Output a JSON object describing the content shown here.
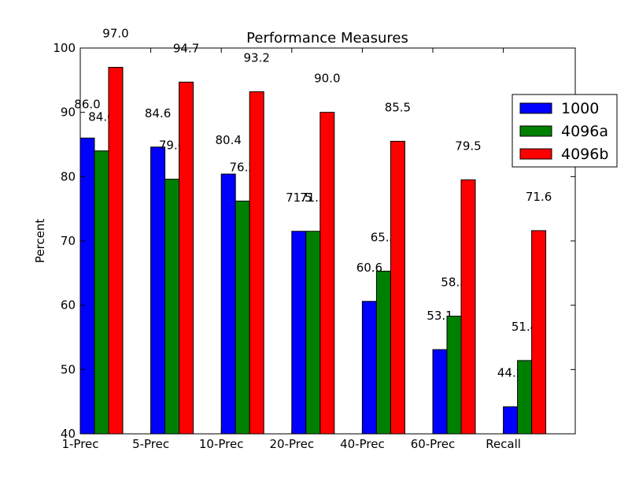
{
  "chart_data": {
    "type": "bar",
    "title": "Performance Measures",
    "xlabel": "",
    "ylabel": "Percent",
    "ylim": [
      40,
      100
    ],
    "yticks": [
      40,
      50,
      60,
      70,
      80,
      90,
      100
    ],
    "grid": false,
    "legend_position": "right",
    "categories": [
      "1-Prec",
      "5-Prec",
      "10-Prec",
      "20-Prec",
      "40-Prec",
      "60-Prec",
      "Recall"
    ],
    "series": [
      {
        "name": "1000",
        "color": "#0000ff",
        "values": [
          86.0,
          84.6,
          80.4,
          71.5,
          60.6,
          53.1,
          44.2
        ],
        "value_labels": [
          "86.0",
          "84.6",
          "80.4",
          "71.5",
          "60.6",
          "53.1",
          "44.2"
        ]
      },
      {
        "name": "4096a",
        "color": "#008000",
        "values": [
          84.0,
          79.6,
          76.2,
          71.5,
          65.3,
          58.3,
          51.4
        ],
        "value_labels": [
          "84.0",
          "79.6",
          "76.2",
          "71.5",
          "65.3",
          "58.3",
          "51.4"
        ]
      },
      {
        "name": "4096b",
        "color": "#ff0000",
        "values": [
          97.0,
          94.7,
          93.2,
          90.0,
          85.5,
          79.5,
          71.6
        ],
        "value_labels": [
          "97.0",
          "94.7",
          "93.2",
          "90.0",
          "85.5",
          "79.5",
          "71.6"
        ]
      }
    ]
  }
}
